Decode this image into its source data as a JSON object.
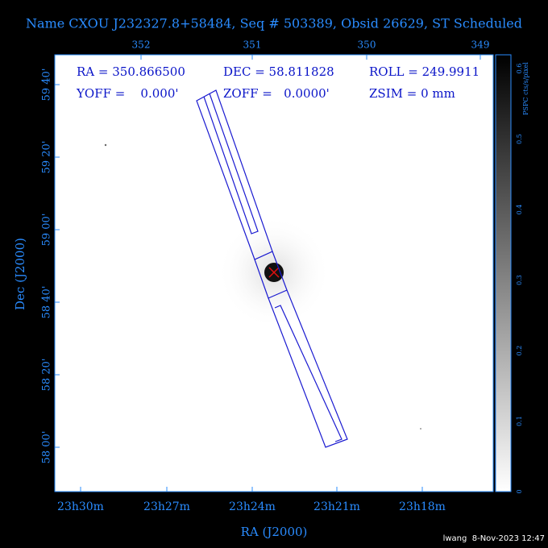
{
  "title": "Name CXOU J232327.8+58484, Seq # 503389, Obsid 26629, ST Scheduled",
  "header": {
    "ra": "RA = 350.866500",
    "dec": "DEC = 58.811828",
    "roll": "ROLL = 249.9911",
    "yoff": "YOFF =    0.000'",
    "zoff": "ZOFF =   0.0000'",
    "zsim": "ZSIM = 0 mm"
  },
  "top_axis": [
    "352",
    "351",
    "350",
    "349"
  ],
  "bottom_axis": [
    "23h30m",
    "23h27m",
    "23h24m",
    "23h21m",
    "23h18m"
  ],
  "left_axis": [
    "59 40'",
    "59 20'",
    "59 00'",
    "58 40'",
    "58 20'",
    "58 00'"
  ],
  "x_label": "RA (J2000)",
  "y_label": "Dec (J2000)",
  "colorbar": {
    "label": "PSPC cts/s/pixel",
    "ticks": [
      "0",
      "0.1",
      "0.2",
      "0.3",
      "0.4",
      "0.5",
      "0.6"
    ]
  },
  "footer": "lwang  8-Nov-2023 12:47"
}
